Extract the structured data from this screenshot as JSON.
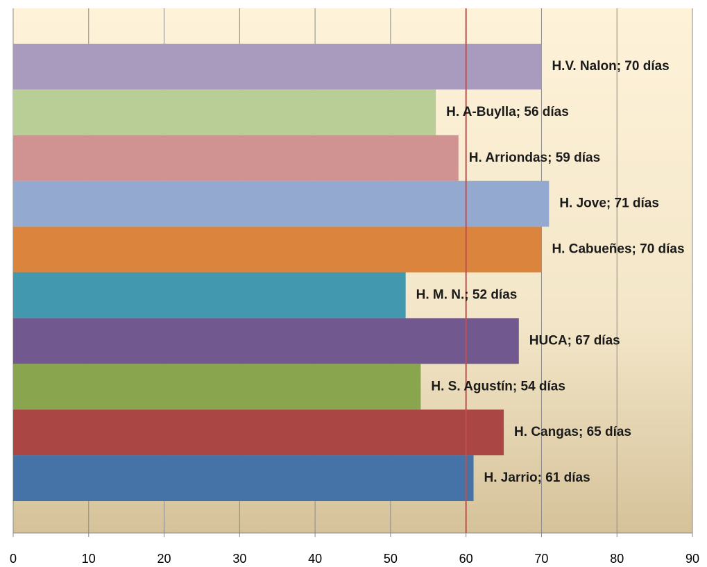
{
  "chart_data": {
    "type": "bar",
    "orientation": "horizontal",
    "value_labels": [
      "H.V. Nalon; 70 días",
      "H. A-Buylla; 56 días",
      "H. Arriondas; 59 días",
      "H. Jove; 71 días",
      "H. Cabueñes; 70 días",
      "H. M. N.; 52 días",
      "HUCA; 67 días",
      "H. S. Agustín; 54 días",
      "H. Cangas; 65 días",
      "H. Jarrio; 61 días"
    ],
    "values": [
      70,
      56,
      59,
      71,
      70,
      52,
      67,
      54,
      65,
      61
    ],
    "colors": [
      "#a99bbd",
      "#b9cd96",
      "#d19392",
      "#93a9cf",
      "#db843d",
      "#4198af",
      "#71588f",
      "#89a54e",
      "#aa4643",
      "#4572a7"
    ],
    "xlim": [
      0,
      90
    ],
    "xticks": [
      0,
      10,
      20,
      30,
      40,
      50,
      60,
      70,
      80,
      90
    ],
    "grid": true,
    "reference_line": {
      "value": 60,
      "color": "#c0504d"
    }
  }
}
